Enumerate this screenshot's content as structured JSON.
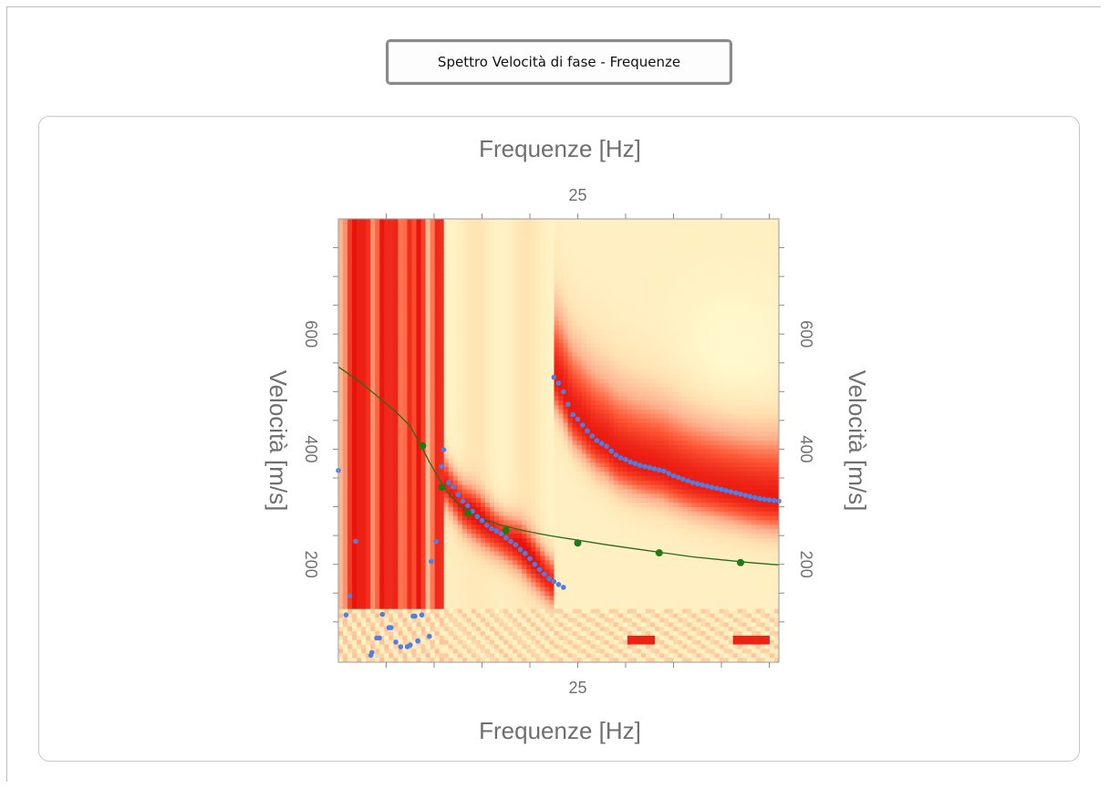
{
  "window": {
    "title_button_label": "Spettro Velocità di fase - Frequenze"
  },
  "chart_data": {
    "type": "heatmap",
    "title": "",
    "xlabel_top": "Frequenze [Hz]",
    "xlabel_bottom": "Frequenze [Hz]",
    "ylabel_left": "Velocità [m/s]",
    "ylabel_right": "Velocità [m/s]",
    "xlim": [
      0,
      46
    ],
    "ylim": [
      30,
      800
    ],
    "x_ticks_labeled": [
      25
    ],
    "x_ticks_minor": [
      5,
      10,
      15,
      20,
      25,
      30,
      35,
      40,
      45
    ],
    "y_ticks_labeled": [
      200,
      400,
      600
    ],
    "y_ticks_minor": [
      100,
      150,
      200,
      250,
      300,
      350,
      400,
      450,
      500,
      550,
      600,
      650,
      700,
      750
    ],
    "grid": false,
    "colormap": [
      "#e8140c",
      "#ff5a38",
      "#fdb38f",
      "#ffe2b2",
      "#fff8cc"
    ],
    "series": [
      {
        "kind": "scatter",
        "color": "#4f7fe6",
        "points": [
          [
            0,
            363
          ],
          [
            0.8,
            112
          ],
          [
            1.2,
            145
          ],
          [
            1.8,
            240
          ],
          [
            3.4,
            42
          ],
          [
            3.5,
            47
          ],
          [
            4,
            72
          ],
          [
            4.3,
            72
          ],
          [
            4.6,
            113
          ],
          [
            5.3,
            90
          ],
          [
            5.5,
            90
          ],
          [
            7.8,
            110
          ],
          [
            8,
            110
          ],
          [
            8.7,
            112
          ],
          [
            9.7,
            205
          ],
          [
            10.2,
            240
          ],
          [
            11,
            399
          ],
          [
            6,
            65
          ],
          [
            6.5,
            57
          ],
          [
            7.2,
            57
          ],
          [
            7.5,
            60
          ],
          [
            8.3,
            67
          ],
          [
            9.5,
            75
          ],
          [
            10.8,
            370
          ],
          [
            11.5,
            342
          ],
          [
            12,
            335
          ],
          [
            12.5,
            321
          ],
          [
            13,
            310
          ],
          [
            13.5,
            302
          ],
          [
            14,
            292
          ],
          [
            14.5,
            283
          ],
          [
            15,
            276
          ],
          [
            15.5,
            268
          ],
          [
            16,
            262
          ],
          [
            16.5,
            258
          ],
          [
            17,
            253
          ],
          [
            17.5,
            246
          ],
          [
            18,
            240
          ],
          [
            18.5,
            234
          ],
          [
            19,
            226
          ],
          [
            19.5,
            219
          ],
          [
            20,
            210
          ],
          [
            20.5,
            200
          ],
          [
            21,
            191
          ],
          [
            21.5,
            183
          ],
          [
            22,
            175
          ],
          [
            22.5,
            170
          ],
          [
            23,
            165
          ],
          [
            23.5,
            160
          ],
          [
            22.5,
            525
          ],
          [
            23,
            515
          ],
          [
            23.5,
            500
          ],
          [
            24,
            478
          ],
          [
            24.5,
            460
          ],
          [
            25,
            452
          ],
          [
            25.5,
            442
          ],
          [
            26,
            432
          ],
          [
            26.5,
            423
          ],
          [
            27,
            415
          ],
          [
            27.5,
            410
          ],
          [
            28,
            405
          ],
          [
            28.5,
            397
          ],
          [
            29,
            390
          ],
          [
            29.5,
            385
          ],
          [
            30,
            382
          ],
          [
            30.5,
            378
          ],
          [
            31,
            375
          ],
          [
            31.5,
            372
          ],
          [
            32,
            370
          ],
          [
            32.5,
            368
          ],
          [
            33,
            366
          ],
          [
            33.5,
            364
          ],
          [
            34,
            362
          ],
          [
            34.5,
            358
          ],
          [
            35,
            354
          ],
          [
            35.5,
            351
          ],
          [
            36,
            348
          ],
          [
            36.5,
            345
          ],
          [
            37,
            342
          ],
          [
            37.5,
            340
          ],
          [
            38,
            338
          ],
          [
            38.5,
            336
          ],
          [
            39,
            334
          ],
          [
            39.5,
            332
          ],
          [
            40,
            330
          ],
          [
            40.5,
            328
          ],
          [
            41,
            326
          ],
          [
            41.5,
            324
          ],
          [
            42,
            322
          ],
          [
            42.5,
            320
          ],
          [
            43,
            318
          ],
          [
            43.5,
            316
          ],
          [
            44,
            314
          ],
          [
            44.5,
            313
          ],
          [
            45,
            312
          ],
          [
            45.5,
            311
          ],
          [
            46,
            310
          ]
        ]
      },
      {
        "kind": "line",
        "color": "#2a6a1c",
        "points": [
          [
            0,
            543
          ],
          [
            2,
            520
          ],
          [
            4,
            493
          ],
          [
            6,
            465
          ],
          [
            7.5,
            440
          ],
          [
            8.5,
            410
          ],
          [
            9.5,
            378
          ],
          [
            10.5,
            349
          ],
          [
            11.5,
            323
          ],
          [
            12.5,
            305
          ],
          [
            13.5,
            291
          ],
          [
            15,
            279
          ],
          [
            17,
            268
          ],
          [
            19.5,
            258
          ],
          [
            22,
            250
          ],
          [
            25,
            242
          ],
          [
            28,
            234
          ],
          [
            31,
            227
          ],
          [
            34,
            220
          ],
          [
            37,
            213
          ],
          [
            40,
            208
          ],
          [
            43,
            203
          ],
          [
            46,
            199
          ]
        ]
      },
      {
        "kind": "markers",
        "color": "#1f7a14",
        "points": [
          [
            8.8,
            406
          ],
          [
            10.8,
            334
          ],
          [
            13.5,
            289
          ],
          [
            17.5,
            259
          ],
          [
            25,
            237
          ],
          [
            33.5,
            220
          ],
          [
            42,
            203
          ]
        ]
      }
    ],
    "heat_ridges": [
      {
        "x": 1.5,
        "width": 1.0,
        "strength": 1.0
      },
      {
        "x": 3.0,
        "width": 0.8,
        "strength": 0.9
      },
      {
        "x": 4.5,
        "width": 0.8,
        "strength": 0.95
      },
      {
        "x": 6.0,
        "width": 0.8,
        "strength": 0.9
      },
      {
        "x": 7.3,
        "width": 0.7,
        "strength": 0.9
      },
      {
        "x": 8.5,
        "width": 0.7,
        "strength": 0.85
      },
      {
        "x": 10.3,
        "width": 0.8,
        "strength": 0.95
      }
    ]
  }
}
